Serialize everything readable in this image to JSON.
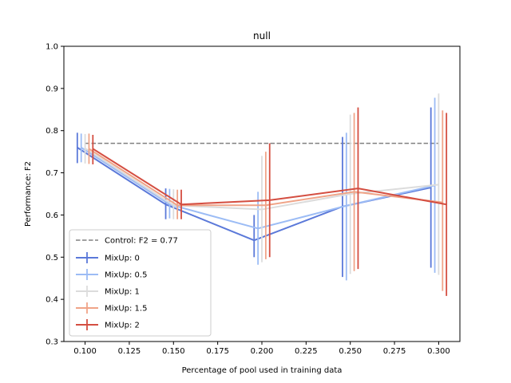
{
  "chart_data": {
    "type": "line",
    "title": "null",
    "xlabel": "Percentage of pool used in training data",
    "ylabel": "Performance: F2",
    "xlim": [
      0.088,
      0.312
    ],
    "ylim": [
      0.3,
      1.0
    ],
    "xticks": [
      "0.100",
      "0.125",
      "0.150",
      "0.175",
      "0.200",
      "0.225",
      "0.250",
      "0.275",
      "0.300"
    ],
    "yticks": [
      "0.3",
      "0.4",
      "0.5",
      "0.6",
      "0.7",
      "0.8",
      "0.9",
      "1.0"
    ],
    "grid": false,
    "legend_position": "lower-left",
    "x": [
      0.1,
      0.15,
      0.2,
      0.25,
      0.3
    ],
    "control": {
      "name": "Control: F2 = 0.77",
      "value": 0.77,
      "x_range": [
        0.1,
        0.3
      ],
      "color": "#808080"
    },
    "series": [
      {
        "name": "MixUp: 0",
        "color": "#5b79d9",
        "values": [
          0.76,
          0.625,
          0.54,
          0.62,
          0.665
        ],
        "err_low": [
          0.723,
          0.59,
          0.5,
          0.453,
          0.475
        ],
        "err_high": [
          0.795,
          0.663,
          0.6,
          0.785,
          0.855
        ]
      },
      {
        "name": "MixUp: 0.5",
        "color": "#9cbcf5",
        "values": [
          0.76,
          0.625,
          0.568,
          0.622,
          0.67
        ],
        "err_low": [
          0.725,
          0.592,
          0.482,
          0.445,
          0.463
        ],
        "err_high": [
          0.793,
          0.662,
          0.655,
          0.795,
          0.878
        ]
      },
      {
        "name": "MixUp: 1",
        "color": "#dcdcdc",
        "values": [
          0.758,
          0.623,
          0.613,
          0.65,
          0.672
        ],
        "err_low": [
          0.722,
          0.59,
          0.488,
          0.46,
          0.458
        ],
        "err_high": [
          0.792,
          0.661,
          0.74,
          0.838,
          0.888
        ]
      },
      {
        "name": "MixUp: 1.5",
        "color": "#f0a488",
        "values": [
          0.757,
          0.623,
          0.623,
          0.655,
          0.63
        ],
        "err_low": [
          0.721,
          0.59,
          0.495,
          0.467,
          0.42
        ],
        "err_high": [
          0.793,
          0.66,
          0.75,
          0.842,
          0.848
        ]
      },
      {
        "name": "MixUp: 2",
        "color": "#d44e41",
        "values": [
          0.757,
          0.625,
          0.635,
          0.663,
          0.625
        ],
        "err_low": [
          0.72,
          0.59,
          0.5,
          0.472,
          0.408
        ],
        "err_high": [
          0.79,
          0.66,
          0.77,
          0.855,
          0.842
        ]
      }
    ]
  }
}
